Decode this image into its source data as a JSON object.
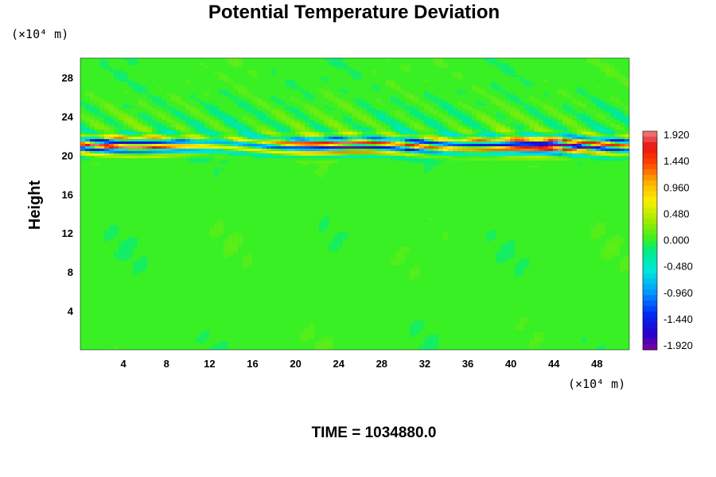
{
  "chart_data": {
    "type": "heatmap",
    "title": "Potential Temperature Deviation",
    "ylabel": "Height",
    "xlabel": "",
    "x_unit": "(×10⁴ m)",
    "y_unit": "(×10⁴ m)",
    "xlim": [
      0,
      51
    ],
    "ylim": [
      0,
      30
    ],
    "x_ticks": [
      4,
      8,
      12,
      16,
      20,
      24,
      28,
      32,
      36,
      40,
      44,
      48
    ],
    "y_ticks": [
      4,
      8,
      12,
      16,
      20,
      24,
      28
    ],
    "colorbar": {
      "min": -1.92,
      "max": 1.92,
      "labels": [
        "1.920",
        "1.440",
        "0.960",
        "0.480",
        "0.000",
        "-0.480",
        "-0.960",
        "-1.440",
        "-1.920"
      ]
    },
    "field_description": "Near-zero deviation (green) throughout domain; strong alternating positive (red) and negative (blue) deviation band concentrated around height 20-22 (×10⁴ m) across the full horizontal extent; weak wave-like perturbations above 22.",
    "annotation": "TIME = 1034880.0"
  }
}
